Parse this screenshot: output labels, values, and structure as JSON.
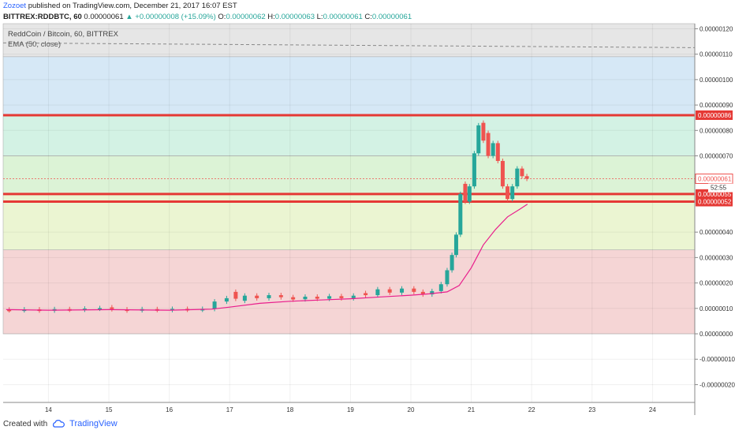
{
  "header": {
    "author": "Zozoet",
    "published": "published on TradingView.com, December 21, 2017 16:07 EST",
    "symbol": "BITTREX:RDDBTC, 60",
    "last": "0.00000061",
    "change": "+0.00000008 (+15.09%)",
    "o_label": "O:",
    "o": "0.00000062",
    "h_label": "H:",
    "h": "0.00000063",
    "l_label": "L:",
    "l": "0.00000061",
    "c_label": "C:",
    "c": "0.00000061"
  },
  "legend": {
    "title": "ReddCoin / Bitcoin, 60, BITTREX",
    "ema": "EMA (50, close)"
  },
  "footer": {
    "created_with": "Created with",
    "brand": "TradingView"
  },
  "colors": {
    "up": "#26a69a",
    "down": "#ef5350",
    "ema": "#e91e8c",
    "level_line": "#e53935",
    "zone_gray": "#e6e6e6",
    "zone_blue": "#d6e8f6",
    "zone_green": "#d3f2e4",
    "zone_lightgreen": "#dcf3d6",
    "zone_yellowgreen": "#ebf5d2",
    "zone_red": "#f5d5d5"
  },
  "chart_data": {
    "type": "candlestick",
    "ylim": [
      -2.7e-07,
      1.22e-06
    ],
    "xlim": [
      13.25,
      24.7
    ],
    "x_ticks": [
      "14",
      "15",
      "16",
      "17",
      "18",
      "19",
      "20",
      "21",
      "22",
      "23",
      "24"
    ],
    "y_ticks": [
      "0.00000120",
      "0.00000110",
      "0.00000100",
      "0.00000090",
      "0.00000080",
      "0.00000070",
      "0.00000040",
      "0.00000030",
      "0.00000020",
      "0.00000010",
      "0.00000000",
      "-0.00000010",
      "-0.00000020"
    ],
    "zones": [
      {
        "from": 1.09e-06,
        "to": 1.22e-06,
        "color": "zone_gray"
      },
      {
        "from": 8.6e-07,
        "to": 1.09e-06,
        "color": "zone_blue"
      },
      {
        "from": 7e-07,
        "to": 8.6e-07,
        "color": "zone_green"
      },
      {
        "from": 5.5e-07,
        "to": 7e-07,
        "color": "zone_lightgreen"
      },
      {
        "from": 3.3e-07,
        "to": 5.5e-07,
        "color": "zone_yellowgreen"
      },
      {
        "from": 0.0,
        "to": 3.3e-07,
        "color": "zone_red"
      }
    ],
    "price_levels": [
      {
        "value": 8.6e-07,
        "label": "0.00000086"
      },
      {
        "value": 5.5e-07,
        "label": "0.00000055"
      },
      {
        "value": 5.2e-07,
        "label": "0.00000052"
      }
    ],
    "last_price": {
      "value": 6.1e-07,
      "label": "0.00000061",
      "countdown": "52:55"
    },
    "ema_dashed_top": 1.135e-06,
    "ema_points": [
      [
        13.3,
        9.5e-08
      ],
      [
        14.0,
        9.3e-08
      ],
      [
        15.0,
        9.5e-08
      ],
      [
        16.0,
        9.3e-08
      ],
      [
        16.7,
        9.7e-08
      ],
      [
        17.0,
        1.05e-07
      ],
      [
        17.5,
        1.2e-07
      ],
      [
        18.0,
        1.28e-07
      ],
      [
        18.5,
        1.33e-07
      ],
      [
        19.0,
        1.38e-07
      ],
      [
        19.5,
        1.45e-07
      ],
      [
        20.0,
        1.52e-07
      ],
      [
        20.3,
        1.57e-07
      ],
      [
        20.6,
        1.65e-07
      ],
      [
        20.8,
        1.9e-07
      ],
      [
        21.0,
        2.6e-07
      ],
      [
        21.2,
        3.5e-07
      ],
      [
        21.4,
        4.1e-07
      ],
      [
        21.6,
        4.6e-07
      ],
      [
        21.8,
        4.9e-07
      ],
      [
        21.93,
        5.1e-07
      ]
    ],
    "candles": [
      [
        13.35,
        9.5e-08,
        9.3e-08
      ],
      [
        13.6,
        9.3e-08,
        9.6e-08
      ],
      [
        13.85,
        9.6e-08,
        9.2e-08
      ],
      [
        14.1,
        9.2e-08,
        9.7e-08
      ],
      [
        14.35,
        9.7e-08,
        9.5e-08
      ],
      [
        14.6,
        9.5e-08,
        9.9e-08
      ],
      [
        14.85,
        9.9e-08,
        1.01e-07
      ],
      [
        15.05,
        1.04e-07,
        9.7e-08
      ],
      [
        15.3,
        9.6e-08,
        9.2e-08
      ],
      [
        15.55,
        9.3e-08,
        9.7e-08
      ],
      [
        15.8,
        9.7e-08,
        9.4e-08
      ],
      [
        16.05,
        9.4e-08,
        9.8e-08
      ],
      [
        16.3,
        9.8e-08,
        9.5e-08
      ],
      [
        16.55,
        9.5e-08,
        9.8e-08
      ],
      [
        16.75,
        9.8e-08,
        1.27e-07
      ],
      [
        16.95,
        1.27e-07,
        1.4e-07
      ],
      [
        17.1,
        1.65e-07,
        1.38e-07
      ],
      [
        17.25,
        1.3e-07,
        1.5e-07
      ],
      [
        17.45,
        1.5e-07,
        1.4e-07
      ],
      [
        17.65,
        1.4e-07,
        1.52e-07
      ],
      [
        17.85,
        1.52e-07,
        1.44e-07
      ],
      [
        18.05,
        1.44e-07,
        1.35e-07
      ],
      [
        18.25,
        1.36e-07,
        1.46e-07
      ],
      [
        18.45,
        1.46e-07,
        1.38e-07
      ],
      [
        18.65,
        1.38e-07,
        1.48e-07
      ],
      [
        18.85,
        1.48e-07,
        1.4e-07
      ],
      [
        19.05,
        1.4e-07,
        1.5e-07
      ],
      [
        19.25,
        1.6e-07,
        1.52e-07
      ],
      [
        19.45,
        1.52e-07,
        1.75e-07
      ],
      [
        19.65,
        1.75e-07,
        1.62e-07
      ],
      [
        19.85,
        1.62e-07,
        1.78e-07
      ],
      [
        20.05,
        1.78e-07,
        1.65e-07
      ],
      [
        20.2,
        1.65e-07,
        1.55e-07
      ],
      [
        20.35,
        1.55e-07,
        1.68e-07
      ],
      [
        20.5,
        1.68e-07,
        1.95e-07
      ],
      [
        20.6,
        1.95e-07,
        2.5e-07
      ],
      [
        20.68,
        2.5e-07,
        3.1e-07
      ],
      [
        20.75,
        3.1e-07,
        3.9e-07
      ],
      [
        20.82,
        3.9e-07,
        5.5e-07
      ],
      [
        20.9,
        5.9e-07,
        5.2e-07
      ],
      [
        20.97,
        5.2e-07,
        5.8e-07
      ],
      [
        21.05,
        5.8e-07,
        7.1e-07
      ],
      [
        21.12,
        7.1e-07,
        8.2e-07
      ],
      [
        21.2,
        8.3e-07,
        7.6e-07
      ],
      [
        21.28,
        7.9e-07,
        7e-07
      ],
      [
        21.36,
        7e-07,
        7.5e-07
      ],
      [
        21.44,
        7.5e-07,
        6.8e-07
      ],
      [
        21.52,
        6.8e-07,
        5.8e-07
      ],
      [
        21.6,
        5.8e-07,
        5.3e-07
      ],
      [
        21.68,
        5.3e-07,
        5.8e-07
      ],
      [
        21.76,
        5.8e-07,
        6.5e-07
      ],
      [
        21.84,
        6.5e-07,
        6.2e-07
      ],
      [
        21.92,
        6.2e-07,
        6.1e-07
      ]
    ]
  }
}
